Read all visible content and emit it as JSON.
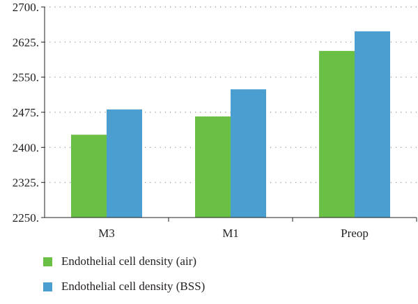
{
  "chart_data": {
    "type": "bar",
    "categories": [
      "M3",
      "M1",
      "Preop"
    ],
    "series": [
      {
        "name": "Endothelial cell density (air)",
        "color": "#6abf45",
        "values": [
          2427,
          2466,
          2606
        ]
      },
      {
        "name": "Endothelial cell density (BSS)",
        "color": "#4a9fd0",
        "values": [
          2481,
          2524,
          2648
        ]
      }
    ],
    "ylim": [
      2250,
      2700
    ],
    "yticks": [
      2250,
      2325,
      2400,
      2475,
      2550,
      2625,
      2700
    ],
    "ytick_labels": [
      "2250.",
      "2325.",
      "2400.",
      "2475.",
      "2550.",
      "2625.",
      "2700."
    ],
    "grid": "horizontal dotted",
    "legend_position": "bottom",
    "title": "",
    "xlabel": "",
    "ylabel": ""
  }
}
